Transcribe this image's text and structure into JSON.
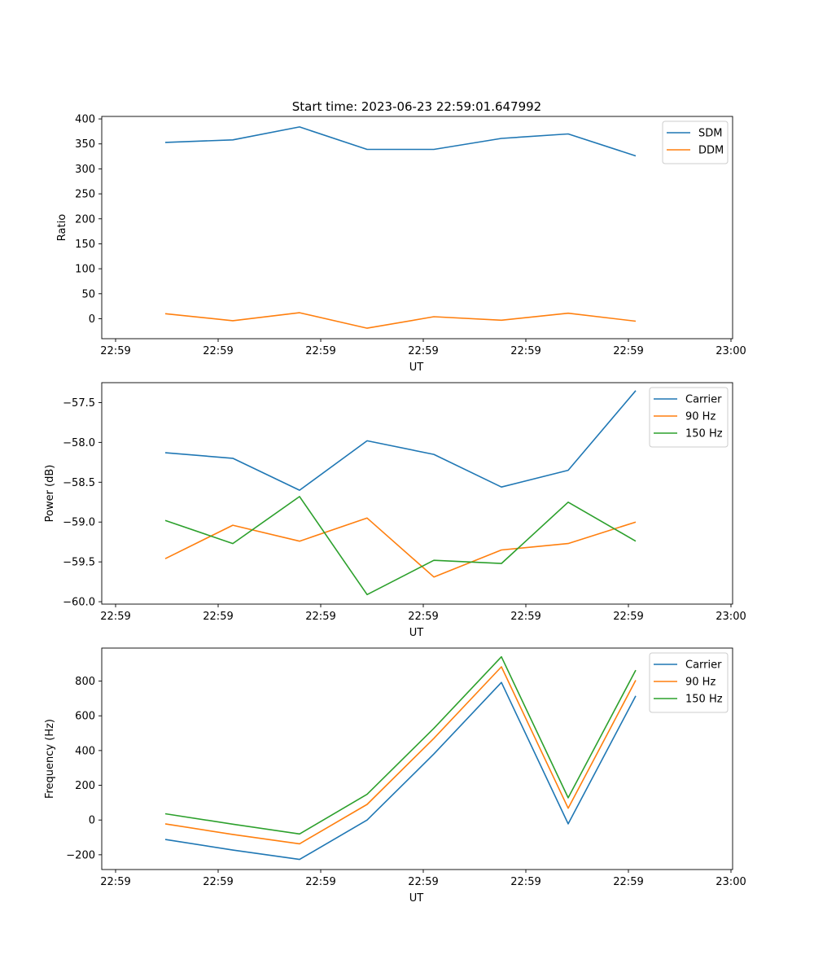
{
  "title": "Start time: 2023-06-23 22:59:01.647992",
  "chart_data": [
    {
      "type": "line",
      "xlabel": "UT",
      "ylabel": "Ratio",
      "x_ticks": [
        "22:59",
        "22:59",
        "22:59",
        "22:59",
        "22:59",
        "22:59",
        "23:00"
      ],
      "ylim": [
        -40,
        405
      ],
      "y_ticks": [
        0,
        50,
        100,
        150,
        200,
        250,
        300,
        350,
        400
      ],
      "y_tick_labels": [
        "0",
        "50",
        "100",
        "150",
        "200",
        "250",
        "300",
        "350",
        "400"
      ],
      "legend": "top-right",
      "grid": false,
      "series": [
        {
          "name": "SDM",
          "color": "#1f77b4",
          "values": [
            353,
            358,
            384,
            339,
            339,
            361,
            370,
            326
          ]
        },
        {
          "name": "DDM",
          "color": "#ff7f0e",
          "values": [
            10,
            -4,
            12,
            -19,
            4,
            -3,
            11,
            -5
          ]
        }
      ]
    },
    {
      "type": "line",
      "xlabel": "UT",
      "ylabel": "Power (dB)",
      "x_ticks": [
        "22:59",
        "22:59",
        "22:59",
        "22:59",
        "22:59",
        "22:59",
        "23:00"
      ],
      "ylim": [
        -60.03,
        -57.25
      ],
      "y_ticks": [
        -60.0,
        -59.5,
        -59.0,
        -58.5,
        -58.0,
        -57.5
      ],
      "y_tick_labels": [
        "−60.0",
        "−59.5",
        "−59.0",
        "−58.5",
        "−58.0",
        "−57.5"
      ],
      "legend": "top-right",
      "grid": false,
      "series": [
        {
          "name": "Carrier",
          "color": "#1f77b4",
          "values": [
            -58.13,
            -58.2,
            -58.6,
            -57.98,
            -58.15,
            -58.56,
            -58.35,
            -57.35
          ]
        },
        {
          "name": "90 Hz",
          "color": "#ff7f0e",
          "values": [
            -59.46,
            -59.04,
            -59.24,
            -58.95,
            -59.69,
            -59.35,
            -59.27,
            -59.0
          ]
        },
        {
          "name": "150 Hz",
          "color": "#2ca02c",
          "values": [
            -58.98,
            -59.27,
            -58.68,
            -59.91,
            -59.48,
            -59.52,
            -58.75,
            -59.24
          ]
        }
      ]
    },
    {
      "type": "line",
      "xlabel": "UT",
      "ylabel": "Frequency (Hz)",
      "x_ticks": [
        "22:59",
        "22:59",
        "22:59",
        "22:59",
        "22:59",
        "22:59",
        "23:00"
      ],
      "ylim": [
        -285,
        990
      ],
      "y_ticks": [
        -200,
        0,
        200,
        400,
        600,
        800
      ],
      "y_tick_labels": [
        "−200",
        "0",
        "200",
        "400",
        "600",
        "800"
      ],
      "legend": "top-right",
      "grid": false,
      "series": [
        {
          "name": "Carrier",
          "color": "#1f77b4",
          "values": [
            -112,
            -173,
            -227,
            0,
            380,
            792,
            -22,
            715
          ]
        },
        {
          "name": "90 Hz",
          "color": "#ff7f0e",
          "values": [
            -22,
            -83,
            -137,
            90,
            470,
            882,
            68,
            805
          ]
        },
        {
          "name": "150 Hz",
          "color": "#2ca02c",
          "values": [
            36,
            -24,
            -80,
            148,
            528,
            940,
            128,
            863
          ]
        }
      ]
    }
  ]
}
